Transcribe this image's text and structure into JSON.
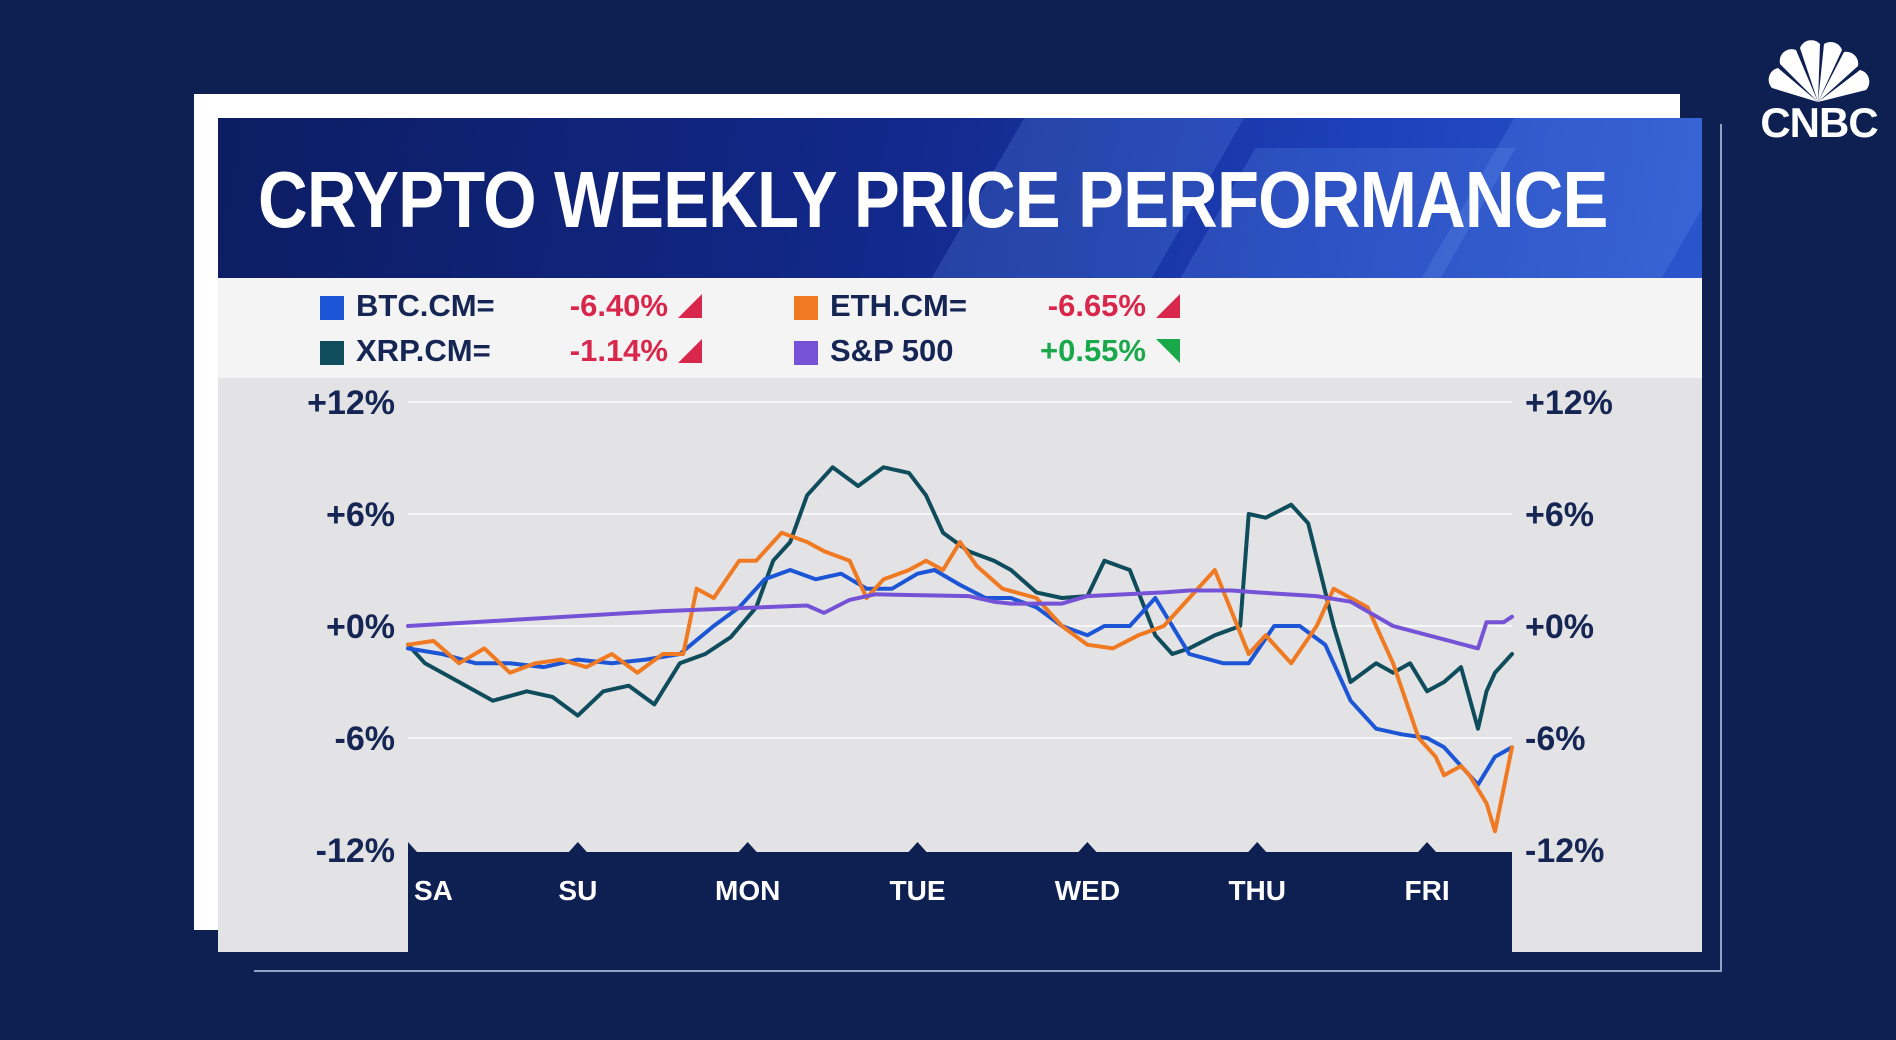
{
  "chart_data": {
    "type": "line",
    "title": "CRYPTO WEEKLY PRICE PERFORMANCE",
    "categories": [
      "SA",
      "SU",
      "MON",
      "TUE",
      "WED",
      "THU",
      "FRI"
    ],
    "ylim": [
      -12,
      12
    ],
    "y_ticks": [
      "+12%",
      "+6%",
      "+0%",
      "-6%",
      "-12%"
    ],
    "y_tick_values": [
      12,
      6,
      0,
      -6,
      -12
    ],
    "x_domain": [
      0,
      6.5
    ],
    "series": [
      {
        "name": "XRP.CM=",
        "color": "#0f4c5c",
        "x": [
          0,
          0.1,
          0.3,
          0.5,
          0.7,
          0.85,
          1.0,
          1.15,
          1.3,
          1.45,
          1.6,
          1.75,
          1.9,
          2.05,
          2.15,
          2.25,
          2.35,
          2.5,
          2.65,
          2.8,
          2.95,
          3.05,
          3.15,
          3.3,
          3.45,
          3.55,
          3.7,
          3.85,
          4.0,
          4.1,
          4.25,
          4.4,
          4.5,
          4.6,
          4.75,
          4.9,
          4.95,
          5.05,
          5.2,
          5.3,
          5.45,
          5.55,
          5.7,
          5.8,
          5.9,
          6.0,
          6.1,
          6.2,
          6.3,
          6.35,
          6.4,
          6.5
        ],
        "y": [
          -1.0,
          -2.0,
          -3.0,
          -4.0,
          -3.5,
          -3.8,
          -4.8,
          -3.5,
          -3.2,
          -4.2,
          -2.0,
          -1.5,
          -0.6,
          1.0,
          3.5,
          4.5,
          7.0,
          8.5,
          7.5,
          8.5,
          8.2,
          7.0,
          5.0,
          4.0,
          3.5,
          3.0,
          1.8,
          1.5,
          1.6,
          3.5,
          3.0,
          -0.5,
          -1.5,
          -1.2,
          -0.5,
          0.0,
          6.0,
          5.8,
          6.5,
          5.5,
          0.0,
          -3.0,
          -2.0,
          -2.5,
          -2.0,
          -3.5,
          -3.0,
          -2.2,
          -5.5,
          -3.5,
          -2.5,
          -1.5
        ]
      },
      {
        "name": "BTC.CM=",
        "color": "#1c55d6",
        "x": [
          0,
          0.2,
          0.4,
          0.6,
          0.8,
          1.0,
          1.2,
          1.4,
          1.6,
          1.8,
          1.95,
          2.1,
          2.25,
          2.4,
          2.55,
          2.7,
          2.85,
          3.0,
          3.1,
          3.25,
          3.4,
          3.55,
          3.7,
          3.85,
          4.0,
          4.1,
          4.25,
          4.4,
          4.6,
          4.8,
          4.95,
          5.1,
          5.25,
          5.4,
          5.55,
          5.7,
          5.85,
          6.0,
          6.1,
          6.2,
          6.3,
          6.4,
          6.5
        ],
        "y": [
          -1.2,
          -1.5,
          -2.0,
          -2.0,
          -2.2,
          -1.8,
          -2.0,
          -1.8,
          -1.5,
          0.0,
          1.0,
          2.5,
          3.0,
          2.5,
          2.8,
          2.0,
          2.0,
          2.8,
          3.0,
          2.2,
          1.5,
          1.5,
          1.0,
          0.0,
          -0.5,
          0.0,
          0.0,
          1.5,
          -1.5,
          -2.0,
          -2.0,
          0.0,
          0.0,
          -1.0,
          -4.0,
          -5.5,
          -5.8,
          -6.0,
          -6.5,
          -7.5,
          -8.5,
          -7.0,
          -6.5
        ]
      },
      {
        "name": "ETH.CM=",
        "color": "#f07a22",
        "x": [
          0,
          0.15,
          0.3,
          0.45,
          0.6,
          0.75,
          0.9,
          1.05,
          1.2,
          1.35,
          1.5,
          1.62,
          1.7,
          1.8,
          1.95,
          2.05,
          2.2,
          2.35,
          2.45,
          2.6,
          2.7,
          2.8,
          2.95,
          3.05,
          3.15,
          3.25,
          3.35,
          3.5,
          3.7,
          3.85,
          4.0,
          4.15,
          4.3,
          4.45,
          4.6,
          4.75,
          4.95,
          5.05,
          5.2,
          5.35,
          5.45,
          5.55,
          5.65,
          5.8,
          5.95,
          6.05,
          6.1,
          6.2,
          6.25,
          6.35,
          6.4,
          6.5
        ],
        "y": [
          -1.0,
          -0.8,
          -2.0,
          -1.2,
          -2.5,
          -2.0,
          -1.8,
          -2.2,
          -1.5,
          -2.5,
          -1.5,
          -1.5,
          2.0,
          1.5,
          3.5,
          3.5,
          5.0,
          4.5,
          4.0,
          3.5,
          1.5,
          2.5,
          3.0,
          3.5,
          3.0,
          4.5,
          3.2,
          2.0,
          1.5,
          0.0,
          -1.0,
          -1.2,
          -0.5,
          0.0,
          1.5,
          3.0,
          -1.5,
          -0.5,
          -2.0,
          0.0,
          2.0,
          1.5,
          1.0,
          -2.0,
          -6.0,
          -7.0,
          -8.0,
          -7.5,
          -8.0,
          -9.5,
          -11.0,
          -6.5
        ]
      },
      {
        "name": "S&P 500",
        "color": "#7653d6",
        "x": [
          0,
          1.5,
          2.35,
          2.45,
          2.6,
          2.75,
          3.3,
          3.45,
          3.55,
          3.85,
          4.0,
          4.45,
          4.6,
          4.85,
          5.0,
          5.35,
          5.55,
          5.8,
          6.3,
          6.35,
          6.45,
          6.5
        ],
        "y": [
          0.0,
          0.8,
          1.1,
          0.7,
          1.4,
          1.7,
          1.6,
          1.3,
          1.2,
          1.2,
          1.6,
          1.8,
          1.9,
          1.9,
          1.8,
          1.6,
          1.3,
          0.0,
          -1.2,
          0.2,
          0.2,
          0.5
        ]
      }
    ],
    "legend": [
      {
        "name": "BTC.CM=",
        "value": "-6.40%",
        "color": "#1c55d6",
        "value_color": "#d9274b",
        "direction": "down"
      },
      {
        "name": "ETH.CM=",
        "value": "-6.65%",
        "color": "#f07a22",
        "value_color": "#d9274b",
        "direction": "down"
      },
      {
        "name": "XRP.CM=",
        "value": "-1.14%",
        "color": "#0f4c5c",
        "value_color": "#d9274b",
        "direction": "down"
      },
      {
        "name": "S&P 500",
        "value": "+0.55%",
        "color": "#7653d6",
        "value_color": "#19a84a",
        "direction": "up"
      }
    ]
  },
  "brand": {
    "name": "CNBC"
  },
  "colors": {
    "background": "#0e1f52",
    "axis_band": "#0e1f52",
    "tick_label": "#152554",
    "down": "#d9274b",
    "up": "#19a84a"
  }
}
